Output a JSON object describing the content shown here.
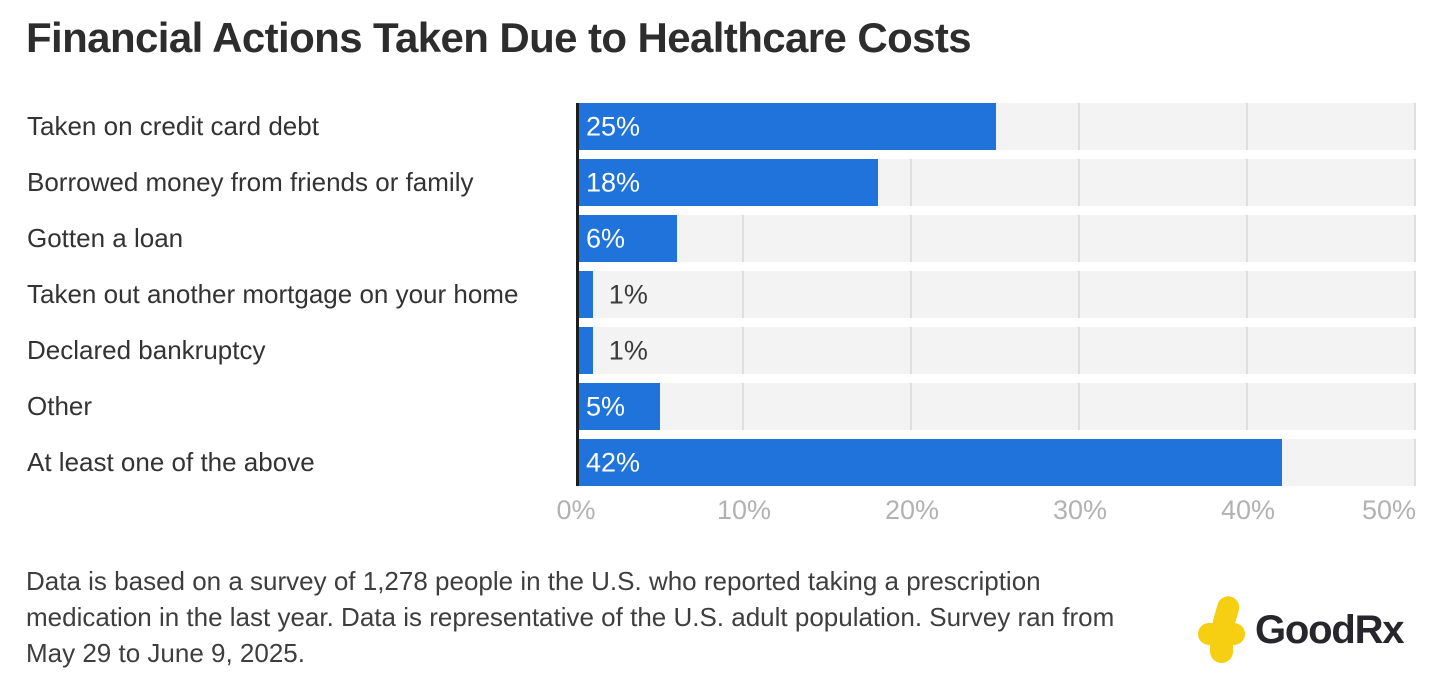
{
  "title": "Financial Actions Taken Due to Healthcare Costs",
  "chart_data": {
    "type": "bar",
    "orientation": "horizontal",
    "title": "Financial Actions Taken Due to Healthcare Costs",
    "categories": [
      "Taken on credit card debt",
      "Borrowed money from friends or family",
      "Gotten a loan",
      "Taken out another mortgage on your home",
      "Declared bankruptcy",
      "Other",
      "At least one of the above"
    ],
    "values": [
      25,
      18,
      6,
      1,
      1,
      5,
      42
    ],
    "value_labels": [
      "25%",
      "18%",
      "6%",
      "1%",
      "1%",
      "5%",
      "42%"
    ],
    "xlim": [
      0,
      50
    ],
    "x_ticks": [
      "0%",
      "10%",
      "20%",
      "30%",
      "40%",
      "50%"
    ],
    "grid": true,
    "legend": "none",
    "bar_color": "#2173dc",
    "band_color": "#f3f3f4",
    "gridline_color": "#dedee0",
    "axis_line_color": "#1d1d1d",
    "inside_label_color": "#ffffff",
    "outside_label_color": "#3b3b3b",
    "tick_label_color": "#b2b2b4",
    "outside_label_threshold": 2
  },
  "footer": {
    "text": "Data is based on a survey of 1,278 people in the U.S. who reported taking a prescription medication in the last year. Data is representative of the U.S. adult population. Survey ran from May 29 to June 9, 2025."
  },
  "branding": {
    "logo_text": "GoodRx",
    "logo_icon": "goodrx-cross",
    "logo_yellow": "#f6ce12",
    "logo_text_color": "#26262b"
  }
}
